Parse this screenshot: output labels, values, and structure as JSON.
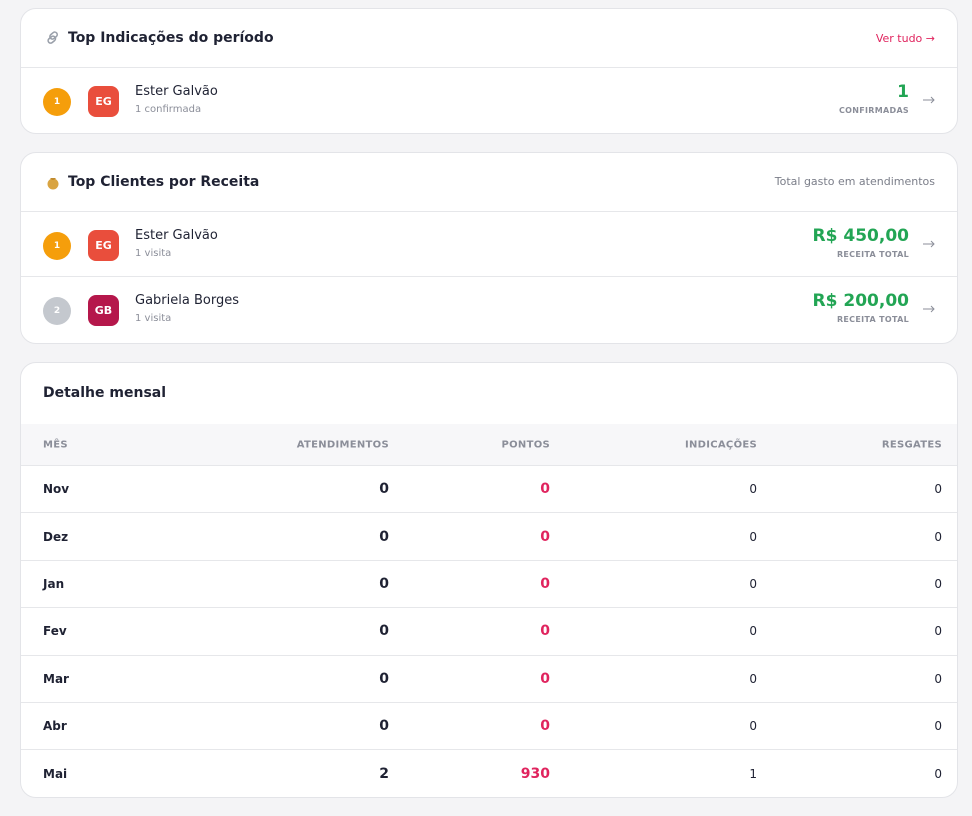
{
  "top_indicacoes": {
    "title": "Top Indicações do período",
    "link": "Ver tudo →",
    "rows": [
      {
        "rank": "1",
        "initials": "EG",
        "name": "Ester Galvão",
        "detail": "1 confirmada",
        "value": "1",
        "value_label": "CONFIRMADAS"
      }
    ]
  },
  "top_clientes": {
    "title": "Top Clientes por Receita",
    "note": "Total gasto em atendimentos",
    "rows": [
      {
        "rank": "1",
        "initials": "EG",
        "name": "Ester Galvão",
        "detail": "1 visita",
        "value": "R$ 450,00",
        "value_label": "RECEITA TOTAL"
      },
      {
        "rank": "2",
        "initials": "GB",
        "name": "Gabriela Borges",
        "detail": "1 visita",
        "value": "R$ 200,00",
        "value_label": "RECEITA TOTAL"
      }
    ]
  },
  "detalhe_mensal": {
    "title": "Detalhe mensal",
    "columns": [
      "MÊS",
      "ATENDIMENTOS",
      "PONTOS",
      "INDICAÇÕES",
      "RESGATES"
    ],
    "rows": [
      [
        "Nov",
        "0",
        "0",
        "0",
        "0"
      ],
      [
        "Dez",
        "0",
        "0",
        "0",
        "0"
      ],
      [
        "Jan",
        "0",
        "0",
        "0",
        "0"
      ],
      [
        "Fev",
        "0",
        "0",
        "0",
        "0"
      ],
      [
        "Mar",
        "0",
        "0",
        "0",
        "0"
      ],
      [
        "Abr",
        "0",
        "0",
        "0",
        "0"
      ],
      [
        "Mai",
        "2",
        "930",
        "1",
        "0"
      ]
    ]
  }
}
